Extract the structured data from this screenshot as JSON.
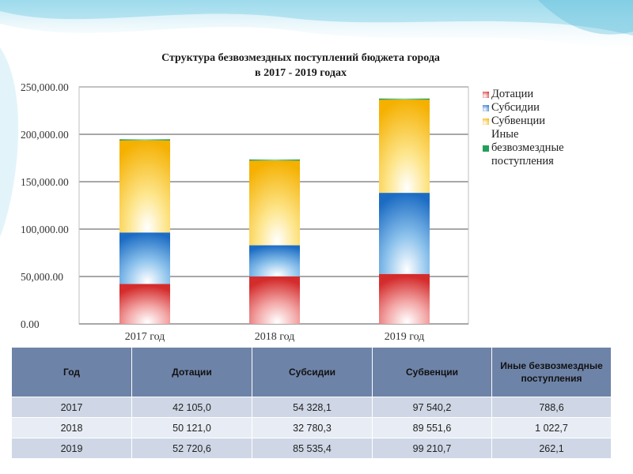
{
  "chart_data": {
    "type": "bar",
    "stacked": true,
    "title": "Структура безвозмездных поступлений бюджета города в 2017 - 2019 годах",
    "title_lines": [
      "Структура безвозмездных поступлений бюджета города",
      "в 2017 - 2019 годах"
    ],
    "categories": [
      "2017 год",
      "2018 год",
      "2019 год"
    ],
    "series": [
      {
        "name": "Дотации",
        "values": [
          42105.0,
          50121.0,
          52720.6
        ],
        "color": "#e04848"
      },
      {
        "name": "Субсидии",
        "values": [
          54328.1,
          32780.3,
          85535.4
        ],
        "color": "#2f7fd0"
      },
      {
        "name": "Субвенции",
        "values": [
          97540.2,
          89551.6,
          99210.7
        ],
        "color": "#f7b500"
      },
      {
        "name": "Иные безвозмездные поступления",
        "values": [
          788.6,
          1022.7,
          262.1
        ],
        "color": "#22a05a"
      }
    ],
    "ylim": [
      0,
      250000
    ],
    "yticks": [
      0,
      50000,
      100000,
      150000,
      200000,
      250000
    ],
    "ytick_labels": [
      "0.00",
      "50,000.00",
      "100,000.00",
      "150,000.00",
      "200,000.00",
      "250,000.00"
    ],
    "grid": true,
    "legend_position": "right"
  },
  "legend": [
    {
      "label": "Дотации",
      "color": "#e04848"
    },
    {
      "label": "Субсидии",
      "color": "#2f7fd0"
    },
    {
      "label": "Субвенции",
      "color": "#f7b500"
    },
    {
      "label": "Иные",
      "color": null
    },
    {
      "label": "безвозмездные",
      "color": "#22a05a"
    },
    {
      "label": "поступления",
      "color": null
    }
  ],
  "table": {
    "headers": [
      "Год",
      "Дотации",
      "Субсидии",
      "Субвенции",
      "Иные безвозмездные поступления"
    ],
    "rows": [
      [
        "2017",
        "42 105,0",
        "54 328,1",
        "97 540,2",
        "788,6"
      ],
      [
        "2018",
        "50 121,0",
        "32 780,3",
        "89 551,6",
        "1 022,7"
      ],
      [
        "2019",
        "52 720,6",
        "85 535,4",
        "99 210,7",
        "262,1"
      ]
    ]
  }
}
